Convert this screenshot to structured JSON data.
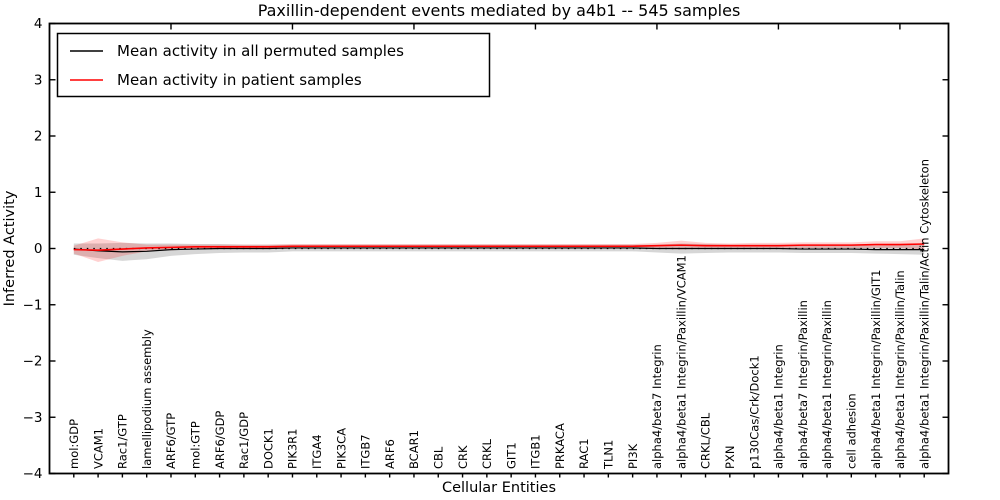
{
  "title": "Paxillin-dependent events mediated by a4b1 -- 545 samples",
  "legend": {
    "items": [
      {
        "label": "Mean activity in all permuted samples",
        "color": "#000000"
      },
      {
        "label": "Mean activity in patient samples",
        "color": "#ff0000"
      }
    ],
    "position": "upper left"
  },
  "chart_data": {
    "type": "line",
    "title": "Paxillin-dependent events mediated by a4b1 -- 545 samples",
    "xlabel": "Cellular Entities",
    "ylabel": "Inferred Activity",
    "ylim": [
      -4,
      4
    ],
    "yticks": [
      4,
      3,
      2,
      1,
      0,
      -1,
      -2,
      -3,
      -4
    ],
    "top_axis_tick_positions": [
      5,
      10,
      15,
      20,
      25,
      30,
      35
    ],
    "grid": false,
    "legend_position": "upper left",
    "reference_line": {
      "y": 0,
      "style": "dotted",
      "color": "#000000"
    },
    "band_colors": {
      "permuted": "#000000",
      "patient": "#ff0000"
    },
    "categories": [
      "mol:GDP",
      "VCAM1",
      "Rac1/GTP",
      "lamellipodium assembly",
      "ARF6/GTP",
      "mol:GTP",
      "ARF6/GDP",
      "Rac1/GDP",
      "DOCK1",
      "PIK3R1",
      "ITGA4",
      "PIK3CA",
      "ITGB7",
      "ARF6",
      "BCAR1",
      "CBL",
      "CRK",
      "CRKL",
      "GIT1",
      "ITGB1",
      "PRKACA",
      "RAC1",
      "TLN1",
      "PI3K",
      "alpha4/beta7 Integrin",
      "alpha4/beta1 Integrin/Paxillin/VCAM1",
      "CRKL/CBL",
      "PXN",
      "p130Cas/Crk/Dock1",
      "alpha4/beta1 Integrin",
      "alpha4/beta7 Integrin/Paxillin",
      "alpha4/beta1 Integrin/Paxillin",
      "cell adhesion",
      "alpha4/beta1 Integrin/Paxillin/GIT1",
      "alpha4/beta1 Integrin/Paxillin/Talin",
      "alpha4/beta1 Integrin/Paxillin/Talin/Actin Cytoskeleton"
    ],
    "series": [
      {
        "name": "Mean activity in all permuted samples",
        "color": "#000000",
        "line_style": "solid",
        "values": [
          -0.01,
          -0.04,
          -0.06,
          -0.05,
          -0.02,
          -0.01,
          0,
          0,
          0,
          0.01,
          0.01,
          0.01,
          0.01,
          0.01,
          0.01,
          0.01,
          0.01,
          0.01,
          0.01,
          0.01,
          0.01,
          0.01,
          0.01,
          0.01,
          0,
          0,
          0,
          0,
          0,
          0,
          -0.01,
          -0.01,
          -0.01,
          -0.02,
          -0.02,
          -0.02
        ],
        "band_halfwidth": [
          0.1,
          0.13,
          0.16,
          0.14,
          0.11,
          0.09,
          0.08,
          0.07,
          0.07,
          0.06,
          0.06,
          0.06,
          0.06,
          0.06,
          0.06,
          0.06,
          0.06,
          0.06,
          0.06,
          0.06,
          0.06,
          0.06,
          0.06,
          0.06,
          0.07,
          0.09,
          0.08,
          0.07,
          0.07,
          0.07,
          0.07,
          0.07,
          0.07,
          0.07,
          0.08,
          0.09
        ]
      },
      {
        "name": "Mean activity in patient samples",
        "color": "#ff0000",
        "line_style": "solid",
        "values": [
          -0.02,
          -0.03,
          -0.01,
          0.01,
          0.02,
          0.03,
          0.03,
          0.03,
          0.03,
          0.04,
          0.04,
          0.04,
          0.04,
          0.04,
          0.04,
          0.04,
          0.04,
          0.04,
          0.04,
          0.04,
          0.04,
          0.04,
          0.04,
          0.04,
          0.05,
          0.06,
          0.05,
          0.05,
          0.05,
          0.05,
          0.06,
          0.06,
          0.06,
          0.07,
          0.07,
          0.08
        ],
        "band_halfwidth": [
          0.07,
          0.21,
          0.12,
          0.06,
          0.05,
          0.04,
          0.04,
          0.04,
          0.04,
          0.04,
          0.04,
          0.04,
          0.04,
          0.04,
          0.04,
          0.04,
          0.04,
          0.04,
          0.04,
          0.04,
          0.04,
          0.04,
          0.04,
          0.04,
          0.05,
          0.08,
          0.05,
          0.04,
          0.05,
          0.05,
          0.05,
          0.05,
          0.05,
          0.06,
          0.06,
          0.1
        ]
      }
    ]
  }
}
